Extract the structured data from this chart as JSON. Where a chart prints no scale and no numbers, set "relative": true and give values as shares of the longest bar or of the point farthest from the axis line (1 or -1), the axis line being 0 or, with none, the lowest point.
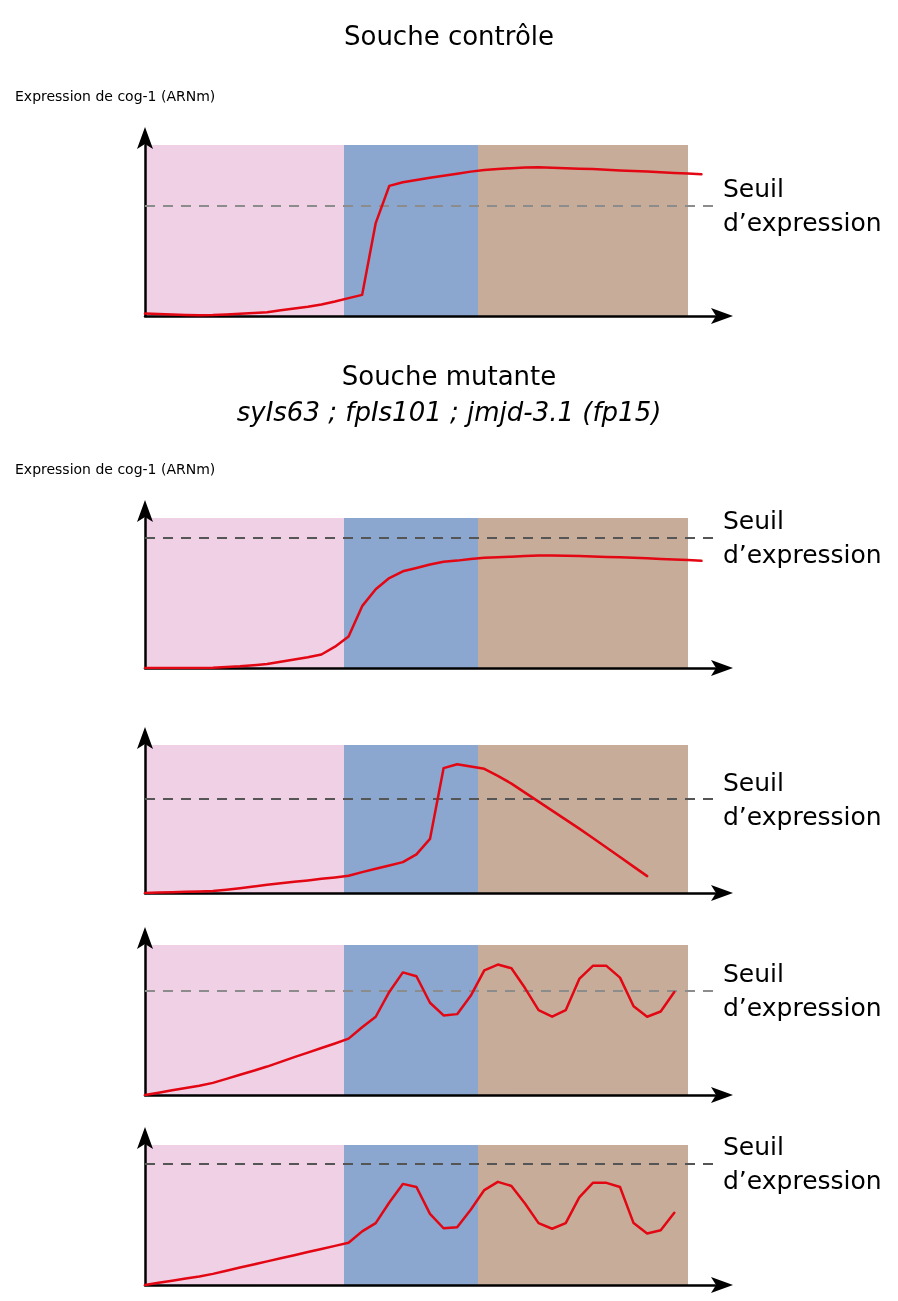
{
  "chart_data": [
    {
      "type": "line",
      "title": "Souche contrôle",
      "ylabel": "Expression de cog-1 (ARNm)",
      "relative": true,
      "tick_labels": false,
      "grid": false,
      "marker": "none",
      "categories": [
        null,
        null,
        null,
        null,
        null,
        null,
        null,
        null,
        null,
        null,
        null,
        null,
        null,
        null,
        null,
        null,
        null,
        null,
        null,
        null,
        null,
        null,
        null,
        null,
        null,
        null,
        null,
        null,
        null,
        null,
        null,
        null,
        null,
        null,
        null,
        null,
        null,
        null,
        null,
        null,
        null,
        null,
        null
      ],
      "series": [
        {
          "color": "#e30613",
          "values": [
            0.016,
            0.013,
            0.01,
            0.007,
            0.005,
            0.006,
            0.01,
            0.015,
            0.02,
            0.025,
            0.038,
            0.05,
            0.062,
            0.077,
            0.097,
            0.12,
            0.142,
            0.625,
            0.875,
            0.9,
            0.915,
            0.93,
            0.943,
            0.957,
            0.971,
            0.982,
            0.988,
            0.994,
            0.999,
            1,
            0.997,
            0.993,
            0.99,
            0.988,
            0.984,
            0.979,
            0.975,
            0.971,
            0.966,
            0.962,
            0.958,
            0.954,
            null
          ]
        }
      ],
      "ref_lines": [
        {
          "axis": "y",
          "value": 0.74,
          "label": "Seuil d’expression",
          "color": "#8c8c8c",
          "line_style": "dashed"
        }
      ]
    },
    {
      "type": "line",
      "title": "Souche mutante",
      "subtitle": "syIs63 ; fpIs101 ; jmjd-3.1 (fp15)",
      "ylabel": "Expression de cog-1 (ARNm)",
      "relative": true,
      "tick_labels": false,
      "grid": false,
      "marker": "none",
      "categories": [
        null,
        null,
        null,
        null,
        null,
        null,
        null,
        null,
        null,
        null,
        null,
        null,
        null,
        null,
        null,
        null,
        null,
        null,
        null,
        null,
        null,
        null,
        null,
        null,
        null,
        null,
        null,
        null,
        null,
        null,
        null,
        null,
        null,
        null,
        null,
        null,
        null,
        null,
        null,
        null,
        null,
        null,
        null
      ],
      "series": [
        {
          "color": "#e30613",
          "values": [
            0,
            0,
            0,
            0,
            0,
            0.002,
            0.008,
            0.015,
            0.025,
            0.035,
            0.055,
            0.075,
            0.095,
            0.12,
            0.19,
            0.28,
            0.55,
            0.7,
            0.8,
            0.86,
            0.89,
            0.92,
            0.945,
            0.955,
            0.97,
            0.98,
            0.985,
            0.99,
            0.995,
            1,
            1,
            0.998,
            0.995,
            0.992,
            0.988,
            0.985,
            0.98,
            0.975,
            0.97,
            0.965,
            0.96,
            0.953,
            null
          ]
        }
      ],
      "ref_lines": [
        {
          "axis": "y",
          "value": 1.16,
          "label": "Seuil d’expression",
          "color": "#555555",
          "line_style": "dashed"
        }
      ]
    },
    {
      "type": "line",
      "relative": true,
      "tick_labels": false,
      "grid": false,
      "marker": "none",
      "categories": [
        null,
        null,
        null,
        null,
        null,
        null,
        null,
        null,
        null,
        null,
        null,
        null,
        null,
        null,
        null,
        null,
        null,
        null,
        null,
        null,
        null,
        null,
        null,
        null,
        null,
        null,
        null,
        null,
        null,
        null,
        null,
        null,
        null,
        null,
        null,
        null,
        null,
        null,
        null,
        null,
        null,
        null,
        null
      ],
      "series": [
        {
          "color": "#e30613",
          "values": [
            0,
            0.003,
            0.006,
            0.009,
            0.012,
            0.016,
            0.026,
            0.037,
            0.05,
            0.064,
            0.075,
            0.087,
            0.098,
            0.11,
            0.121,
            0.134,
            0.162,
            0.188,
            0.214,
            0.24,
            0.3,
            0.42,
            0.97,
            1,
            0.983,
            0.965,
            0.91,
            0.85,
            0.78,
            0.71,
            0.64,
            0.57,
            0.5,
            0.427,
            0.353,
            0.279,
            0.205,
            0.131,
            null,
            null,
            null,
            null,
            null
          ]
        }
      ],
      "ref_lines": [
        {
          "axis": "y",
          "value": 0.73,
          "label": "Seuil d’expression",
          "color": "#555555",
          "line_style": "dashed"
        }
      ]
    },
    {
      "type": "line",
      "relative": true,
      "tick_labels": false,
      "grid": false,
      "marker": "none",
      "categories": [
        null,
        null,
        null,
        null,
        null,
        null,
        null,
        null,
        null,
        null,
        null,
        null,
        null,
        null,
        null,
        null,
        null,
        null,
        null,
        null,
        null,
        null,
        null,
        null,
        null,
        null,
        null,
        null,
        null,
        null,
        null,
        null,
        null,
        null,
        null,
        null,
        null,
        null,
        null,
        null,
        null,
        null,
        null
      ],
      "series": [
        {
          "color": "#e30613",
          "values": [
            0,
            0.018,
            0.036,
            0.054,
            0.071,
            0.093,
            0.124,
            0.155,
            0.186,
            0.218,
            0.254,
            0.29,
            0.325,
            0.36,
            0.395,
            0.432,
            0.52,
            0.6,
            0.79,
            0.94,
            0.91,
            0.707,
            0.61,
            0.62,
            0.76,
            0.955,
            1,
            0.972,
            0.82,
            0.65,
            0.6,
            0.65,
            0.89,
            0.99,
            0.99,
            0.9,
            0.68,
            0.6,
            0.64,
            0.79,
            null,
            null,
            null
          ]
        }
      ],
      "ref_lines": [
        {
          "axis": "y",
          "value": 0.8,
          "label": "Seuil d’expression",
          "color": "#8c8c8c",
          "line_style": "dashed"
        }
      ]
    },
    {
      "type": "line",
      "relative": true,
      "tick_labels": false,
      "grid": false,
      "marker": "none",
      "categories": [
        null,
        null,
        null,
        null,
        null,
        null,
        null,
        null,
        null,
        null,
        null,
        null,
        null,
        null,
        null,
        null,
        null,
        null,
        null,
        null,
        null,
        null,
        null,
        null,
        null,
        null,
        null,
        null,
        null,
        null,
        null,
        null,
        null,
        null,
        null,
        null,
        null,
        null,
        null,
        null,
        null,
        null,
        null
      ],
      "series": [
        {
          "color": "#e30613",
          "values": [
            0,
            0.021,
            0.042,
            0.063,
            0.083,
            0.108,
            0.138,
            0.169,
            0.199,
            0.229,
            0.259,
            0.289,
            0.319,
            0.349,
            0.379,
            0.409,
            0.52,
            0.6,
            0.8,
            0.98,
            0.95,
            0.69,
            0.55,
            0.56,
            0.73,
            0.92,
            1,
            0.96,
            0.79,
            0.6,
            0.545,
            0.6,
            0.85,
            0.99,
            0.99,
            0.95,
            0.6,
            0.5,
            0.53,
            0.7,
            null,
            null,
            null
          ]
        }
      ],
      "ref_lines": [
        {
          "axis": "y",
          "value": 1.18,
          "label": "Seuil d’expression",
          "color": "#555555",
          "line_style": "dashed"
        }
      ]
    }
  ]
}
